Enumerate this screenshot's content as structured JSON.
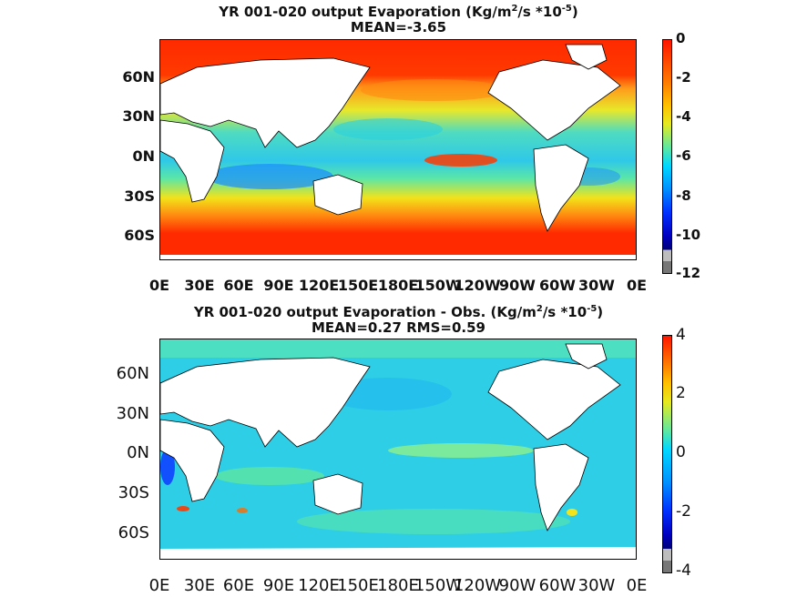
{
  "panel1": {
    "title_main": "YR 001-020 output  Evaporation (Kg/m",
    "title_sup1": "2",
    "title_mid": "/s *10",
    "title_sup2": "-5",
    "title_end": ")",
    "subtitle": "MEAN=-3.65",
    "colorbar": {
      "labels": [
        "0",
        "-2",
        "-4",
        "-6",
        "-8",
        "-10",
        "-12"
      ],
      "range": [
        -12,
        0
      ]
    }
  },
  "panel2": {
    "title_main": "YR 001-020 output Evaporation - Obs. (Kg/m",
    "title_sup1": "2",
    "title_mid": "/s *10",
    "title_sup2": "-5",
    "title_end": ")",
    "subtitle": "MEAN=0.27   RMS=0.59",
    "colorbar": {
      "labels": [
        "4",
        "2",
        "0",
        "-2",
        "-4"
      ],
      "range": [
        -4,
        4
      ]
    }
  },
  "axes": {
    "y_ticks": [
      "60N",
      "30N",
      "0N",
      "30S",
      "60S"
    ],
    "x_ticks": [
      "0E",
      "30E",
      "60E",
      "90E",
      "120E",
      "150E",
      "180E",
      "150W",
      "120W",
      "90W",
      "60W",
      "30W",
      "0E"
    ]
  },
  "colors": {
    "warm": "#ff2a00",
    "orange": "#ff9a1a",
    "yellow": "#f2e31a",
    "cyan": "#1fd3d6",
    "green": "#6cee8a",
    "blue": "#1070ff",
    "navy": "#00008f",
    "land": "#ffffff"
  }
}
